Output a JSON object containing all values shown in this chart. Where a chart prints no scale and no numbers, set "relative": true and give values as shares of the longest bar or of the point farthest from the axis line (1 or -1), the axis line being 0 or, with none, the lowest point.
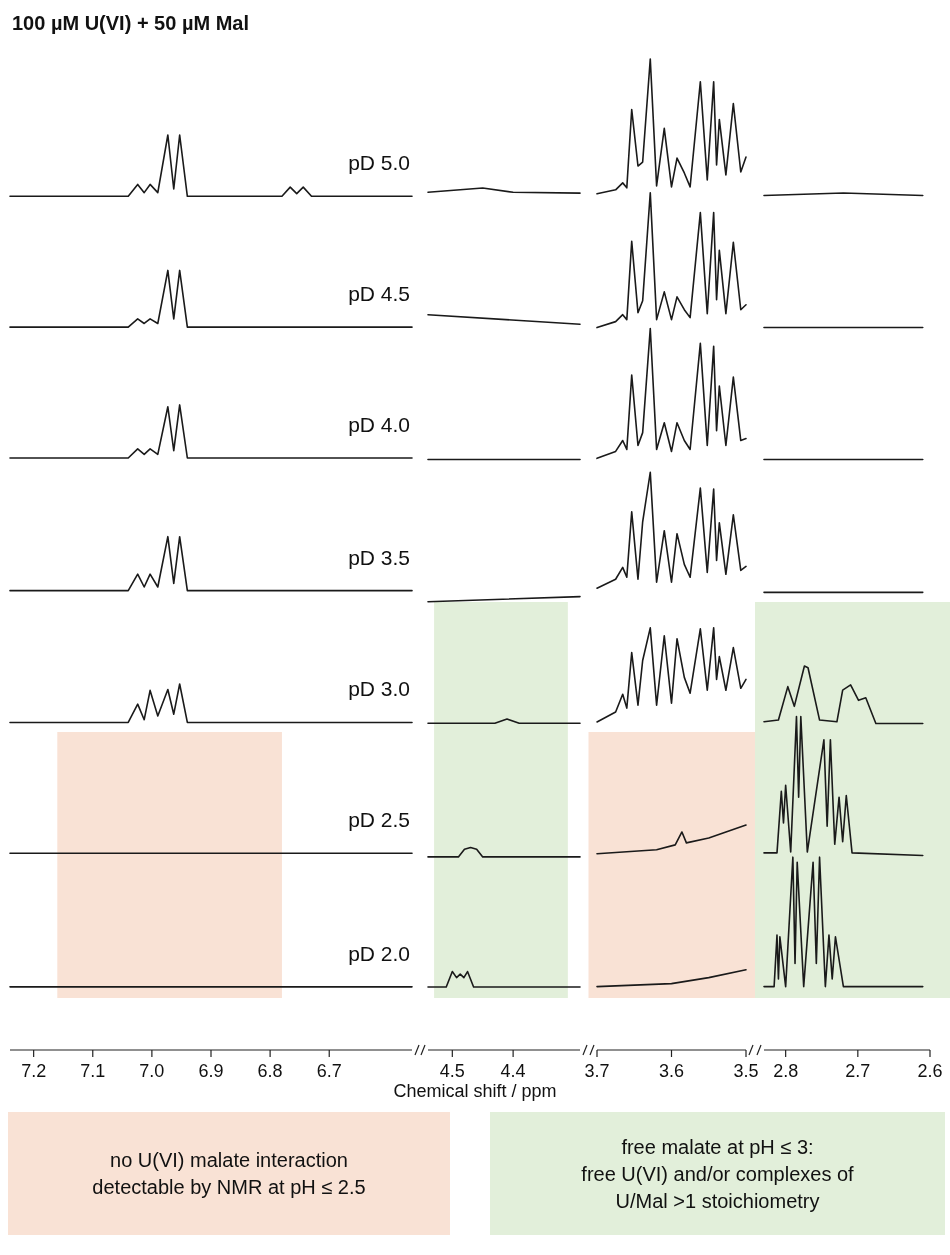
{
  "chart_data": [
    {
      "type": "line",
      "relative": true,
      "title": "100 µM U(VI) + 50 µM Mal",
      "xlabel": "Chemical shift / ppm",
      "annotations": [
        "no U(VI) malate interaction\ndetectable by NMR at pH ≤ 2.5",
        "free malate at pH ≤ 3:\nfree U(VI) and/or complexes of\nU/Mal >1 stoichiometry"
      ],
      "xlim": [
        7.24,
        6.56
      ],
      "xticks": [
        7.2,
        7.1,
        {
          "value": 7,
          "label": "7.0"
        },
        6.9,
        6.8,
        6.7
      ],
      "bands": [
        {
          "axis": "x",
          "from": 7.16,
          "to": 6.78,
          "color": "#f9e2d5"
        }
      ],
      "series": [
        {
          "name": "pD 5.0",
          "color": "#1a1a1a",
          "x": [
            7.24,
            7.04,
            7.024,
            7.013,
            7.003,
            6.99,
            6.973,
            6.963,
            6.953,
            6.94,
            6.78,
            6.766,
            6.755,
            6.744,
            6.73,
            6.56
          ],
          "values": [
            0.933,
            0.933,
            0.946,
            0.937,
            0.946,
            0.937,
            1.0,
            0.941,
            1.0,
            0.933,
            0.933,
            0.943,
            0.936,
            0.943,
            0.933,
            0.933
          ]
        },
        {
          "name": "pD 4.5",
          "color": "#1a1a1a",
          "x": [
            7.24,
            7.04,
            7.024,
            7.013,
            7.003,
            6.99,
            6.973,
            6.963,
            6.953,
            6.94,
            6.56
          ],
          "values": [
            0.79,
            0.79,
            0.799,
            0.794,
            0.799,
            0.794,
            0.852,
            0.799,
            0.852,
            0.79,
            0.79
          ]
        },
        {
          "name": "pD 4.0",
          "color": "#1a1a1a",
          "x": [
            7.24,
            7.04,
            7.024,
            7.013,
            7.003,
            6.99,
            6.973,
            6.963,
            6.953,
            6.94,
            6.56
          ],
          "values": [
            0.647,
            0.647,
            0.657,
            0.651,
            0.657,
            0.651,
            0.703,
            0.655,
            0.705,
            0.647,
            0.647
          ]
        },
        {
          "name": "pD 3.5",
          "color": "#1a1a1a",
          "x": [
            7.24,
            7.04,
            7.024,
            7.013,
            7.003,
            6.99,
            6.973,
            6.963,
            6.953,
            6.94,
            6.56
          ],
          "values": [
            0.502,
            0.502,
            0.52,
            0.506,
            0.52,
            0.506,
            0.561,
            0.51,
            0.561,
            0.502,
            0.502
          ]
        },
        {
          "name": "pD 3.0",
          "color": "#1a1a1a",
          "x": [
            7.24,
            7.04,
            7.024,
            7.013,
            7.003,
            6.99,
            6.973,
            6.963,
            6.953,
            6.94,
            6.56
          ],
          "values": [
            0.358,
            0.358,
            0.378,
            0.361,
            0.393,
            0.365,
            0.394,
            0.367,
            0.4,
            0.358,
            0.358
          ]
        },
        {
          "name": "pD 2.5",
          "color": "#1a1a1a",
          "x": [
            7.24,
            6.56
          ],
          "values": [
            0.215,
            0.215
          ]
        },
        {
          "name": "pD 2.0",
          "color": "#1a1a1a",
          "x": [
            7.24,
            6.56
          ],
          "values": [
            0.069,
            0.069
          ]
        }
      ]
    },
    {
      "type": "line",
      "relative": true,
      "xlim": [
        4.54,
        4.29
      ],
      "xticks": [
        4.5,
        4.4
      ],
      "bands": [
        {
          "axis": "x",
          "from": 4.53,
          "to": 4.31,
          "color": "#e2efda"
        }
      ],
      "series": [
        {
          "color": "#1a1a1a",
          "x": [
            4.54,
            4.45,
            4.4,
            4.29
          ],
          "values": [
            0.995,
            1.0,
            0.995,
            0.994
          ]
        },
        {
          "color": "#1a1a1a",
          "x": [
            4.54,
            4.29
          ],
          "values": [
            0.853,
            0.842
          ]
        },
        {
          "color": "#1a1a1a",
          "x": [
            4.54,
            4.29
          ],
          "values": [
            0.685,
            0.685
          ]
        },
        {
          "color": "#1a1a1a",
          "x": [
            4.54,
            4.29
          ],
          "values": [
            0.52,
            0.526
          ]
        },
        {
          "color": "#1a1a1a",
          "x": [
            4.54,
            4.43,
            4.41,
            4.39,
            4.29
          ],
          "values": [
            0.379,
            0.379,
            0.384,
            0.379,
            0.379
          ]
        },
        {
          "color": "#1a1a1a",
          "x": [
            4.54,
            4.49,
            4.48,
            4.47,
            4.46,
            4.45,
            4.29
          ],
          "values": [
            0.224,
            0.224,
            0.233,
            0.235,
            0.233,
            0.224,
            0.224
          ]
        },
        {
          "color": "#1a1a1a",
          "x": [
            4.54,
            4.51,
            4.5,
            4.493,
            4.487,
            4.481,
            4.475,
            4.465,
            4.29
          ],
          "values": [
            0.073,
            0.073,
            0.091,
            0.084,
            0.088,
            0.084,
            0.091,
            0.073,
            0.073
          ]
        }
      ]
    },
    {
      "type": "line",
      "relative": true,
      "xlim": [
        3.7,
        3.5
      ],
      "xticks": [
        3.7,
        3.6,
        3.5
      ],
      "bands": [
        {
          "axis": "x",
          "from": 3.7,
          "to": 3.5,
          "color": "#f9e2d5"
        }
      ],
      "series": [
        {
          "color": "#1a1a1a",
          "x": [
            3.7,
            3.675,
            3.6655,
            3.66,
            3.6534,
            3.645,
            3.6387,
            3.6285,
            3.62,
            3.6097,
            3.6,
            3.5926,
            3.5828,
            3.575,
            3.5613,
            3.552,
            3.5434,
            3.5395,
            3.5358,
            3.527,
            3.517,
            3.507,
            3.5
          ],
          "values": [
            0.864,
            0.868,
            0.875,
            0.87,
            0.949,
            0.892,
            0.896,
            1.0,
            0.872,
            0.93,
            0.871,
            0.9,
            0.885,
            0.871,
            0.977,
            0.878,
            0.977,
            0.893,
            0.939,
            0.883,
            0.955,
            0.886,
            0.901
          ]
        },
        {
          "color": "#1a1a1a",
          "x": [
            3.7,
            3.675,
            3.6655,
            3.66,
            3.6534,
            3.645,
            3.6387,
            3.6285,
            3.62,
            3.6097,
            3.6,
            3.5926,
            3.5828,
            3.575,
            3.5613,
            3.552,
            3.5434,
            3.5395,
            3.5358,
            3.527,
            3.517,
            3.507,
            3.5
          ],
          "values": [
            0.729,
            0.735,
            0.742,
            0.737,
            0.816,
            0.744,
            0.756,
            0.865,
            0.737,
            0.765,
            0.737,
            0.76,
            0.747,
            0.739,
            0.845,
            0.743,
            0.845,
            0.757,
            0.807,
            0.743,
            0.815,
            0.747,
            0.752
          ]
        },
        {
          "color": "#1a1a1a",
          "x": [
            3.7,
            3.675,
            3.6655,
            3.66,
            3.6534,
            3.645,
            3.6387,
            3.6285,
            3.62,
            3.6097,
            3.6,
            3.5926,
            3.5828,
            3.575,
            3.5613,
            3.552,
            3.5434,
            3.5395,
            3.5358,
            3.527,
            3.517,
            3.507,
            3.5
          ],
          "values": [
            0.597,
            0.604,
            0.615,
            0.606,
            0.681,
            0.61,
            0.623,
            0.728,
            0.606,
            0.633,
            0.604,
            0.633,
            0.615,
            0.606,
            0.713,
            0.61,
            0.71,
            0.625,
            0.67,
            0.61,
            0.679,
            0.615,
            0.617
          ]
        },
        {
          "color": "#1a1a1a",
          "x": [
            3.7,
            3.675,
            3.6655,
            3.66,
            3.6534,
            3.645,
            3.6387,
            3.6285,
            3.62,
            3.6097,
            3.6,
            3.5926,
            3.5828,
            3.575,
            3.5613,
            3.552,
            3.5434,
            3.5395,
            3.5358,
            3.527,
            3.517,
            3.507,
            3.5
          ],
          "values": [
            0.466,
            0.475,
            0.487,
            0.477,
            0.543,
            0.475,
            0.533,
            0.583,
            0.472,
            0.524,
            0.472,
            0.521,
            0.49,
            0.477,
            0.567,
            0.482,
            0.566,
            0.494,
            0.532,
            0.48,
            0.54,
            0.484,
            0.488
          ]
        },
        {
          "color": "#1a1a1a",
          "x": [
            3.7,
            3.675,
            3.6655,
            3.66,
            3.6534,
            3.645,
            3.6387,
            3.6285,
            3.62,
            3.6097,
            3.6,
            3.5926,
            3.5828,
            3.575,
            3.5613,
            3.552,
            3.5434,
            3.5395,
            3.5358,
            3.527,
            3.517,
            3.507,
            3.5
          ],
          "values": [
            0.331,
            0.341,
            0.359,
            0.345,
            0.401,
            0.348,
            0.393,
            0.426,
            0.348,
            0.418,
            0.35,
            0.415,
            0.376,
            0.36,
            0.425,
            0.363,
            0.426,
            0.374,
            0.397,
            0.363,
            0.406,
            0.365,
            0.374
          ]
        },
        {
          "color": "#1a1a1a",
          "x": [
            3.7,
            3.62,
            3.595,
            3.586,
            3.58,
            3.55,
            3.5
          ],
          "values": [
            0.198,
            0.202,
            0.207,
            0.22,
            0.209,
            0.214,
            0.227
          ]
        },
        {
          "color": "#1a1a1a",
          "x": [
            3.7,
            3.6,
            3.55,
            3.5
          ],
          "values": [
            0.064,
            0.067,
            0.073,
            0.081
          ]
        }
      ]
    },
    {
      "type": "line",
      "relative": true,
      "xlim": [
        2.83,
        2.6
      ],
      "xticks": [
        2.8,
        2.7,
        2.6
      ],
      "bands": [
        {
          "axis": "x",
          "from": 2.83,
          "to": 2.6,
          "color": "#e2efda"
        }
      ],
      "series": [
        {
          "color": "#1a1a1a",
          "x": [
            2.83,
            2.72,
            2.61
          ],
          "values": [
            0.997,
            1.0,
            0.997
          ]
        },
        {
          "color": "#1a1a1a",
          "x": [
            2.83,
            2.61
          ],
          "values": [
            0.843,
            0.843
          ]
        },
        {
          "color": "#1a1a1a",
          "x": [
            2.83,
            2.61
          ],
          "values": [
            0.689,
            0.689
          ]
        },
        {
          "color": "#1a1a1a",
          "x": [
            2.83,
            2.61
          ],
          "values": [
            0.534,
            0.534
          ]
        },
        {
          "color": "#1a1a1a",
          "x": [
            2.83,
            2.81,
            2.797,
            2.788,
            2.774,
            2.769,
            2.753,
            2.729,
            2.721,
            2.71,
            2.699,
            2.689,
            2.675,
            2.61
          ],
          "values": [
            0.383,
            0.385,
            0.424,
            0.401,
            0.448,
            0.446,
            0.385,
            0.383,
            0.42,
            0.426,
            0.408,
            0.411,
            0.381,
            0.381
          ]
        },
        {
          "color": "#1a1a1a",
          "x": [
            2.83,
            2.812,
            2.806,
            2.803,
            2.8,
            2.793,
            2.785,
            2.782,
            2.779,
            2.77,
            2.747,
            2.7425,
            2.738,
            2.732,
            2.726,
            2.721,
            2.716,
            2.708,
            2.61
          ],
          "values": [
            0.23,
            0.23,
            0.302,
            0.265,
            0.309,
            0.231,
            0.389,
            0.295,
            0.389,
            0.231,
            0.362,
            0.261,
            0.362,
            0.24,
            0.295,
            0.243,
            0.297,
            0.23,
            0.227
          ]
        },
        {
          "color": "#1a1a1a",
          "x": [
            2.83,
            2.816,
            2.812,
            2.81,
            2.808,
            2.8,
            2.79,
            2.787,
            2.784,
            2.775,
            2.762,
            2.7575,
            2.753,
            2.745,
            2.74,
            2.7355,
            2.731,
            2.72,
            2.61
          ],
          "values": [
            0.074,
            0.074,
            0.134,
            0.083,
            0.132,
            0.074,
            0.225,
            0.101,
            0.219,
            0.074,
            0.219,
            0.101,
            0.225,
            0.074,
            0.134,
            0.083,
            0.132,
            0.074,
            0.074
          ]
        }
      ]
    }
  ]
}
